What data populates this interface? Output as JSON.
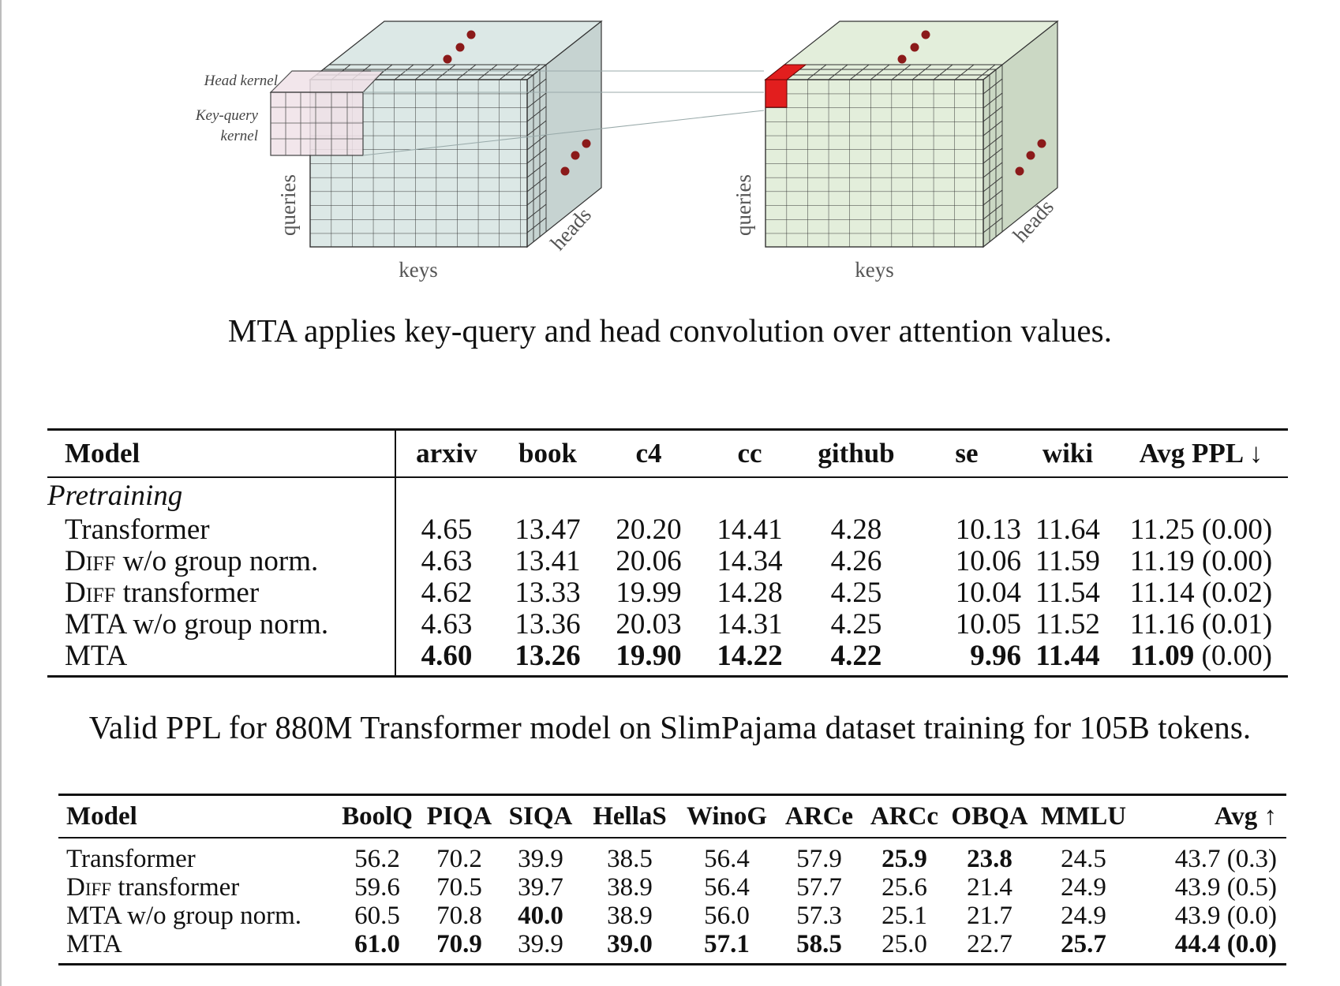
{
  "figure": {
    "labels": {
      "head_kernel": "Head kernel",
      "key_query_kernel_line1": "Key-query",
      "key_query_kernel_line2": "kernel",
      "queries_left": "queries",
      "keys_left": "keys",
      "heads_left": "heads",
      "queries_right": "queries",
      "keys_right": "keys",
      "heads_right": "heads"
    },
    "colors": {
      "left_cube": "#dce8e6",
      "right_cube": "#e3eedb",
      "kernel": "#f0e2e8",
      "highlight": "#e21e1e",
      "dots": "#8b1a1a"
    }
  },
  "caption1": "MTA applies key-query and head convolution over attention values.",
  "table1": {
    "headers": [
      "Model",
      "arxiv",
      "book",
      "c4",
      "cc",
      "github",
      "se",
      "wiki",
      "Avg PPL ↓"
    ],
    "section": "Pretraining",
    "rows": [
      {
        "model": "Transformer",
        "values": [
          "4.65",
          "13.47",
          "20.20",
          "14.41",
          "4.28",
          "10.13",
          "11.64"
        ],
        "avg": "11.25",
        "std": "(0.00)"
      },
      {
        "model_sc": "Diff",
        "model_rest": " w/o group norm.",
        "values": [
          "4.63",
          "13.41",
          "20.06",
          "14.34",
          "4.26",
          "10.06",
          "11.59"
        ],
        "avg": "11.19",
        "std": "(0.00)"
      },
      {
        "model_sc": "Diff",
        "model_rest": " transformer",
        "values": [
          "4.62",
          "13.33",
          "19.99",
          "14.28",
          "4.25",
          "10.04",
          "11.54"
        ],
        "avg": "11.14",
        "std": "(0.02)"
      },
      {
        "model": "MTA w/o group norm.",
        "values": [
          "4.63",
          "13.36",
          "20.03",
          "14.31",
          "4.25",
          "10.05",
          "11.52"
        ],
        "avg": "11.16",
        "std": "(0.01)"
      },
      {
        "model": "MTA",
        "values": [
          "4.60",
          "13.26",
          "19.90",
          "14.22",
          "4.22",
          "9.96",
          "11.44"
        ],
        "avg": "11.09",
        "std": "(0.00)"
      }
    ]
  },
  "caption2": "Valid PPL for 880M Transformer model on SlimPajama dataset training for 105B tokens.",
  "table2": {
    "headers": [
      "Model",
      "BoolQ",
      "PIQA",
      "SIQA",
      "HellaS",
      "WinoG",
      "ARCe",
      "ARCc",
      "OBQA",
      "MMLU",
      "Avg ↑"
    ],
    "rows": [
      {
        "model": "Transformer",
        "values": [
          "56.2",
          "70.2",
          "39.9",
          "38.5",
          "56.4",
          "57.9",
          "25.9",
          "23.8",
          "24.5"
        ],
        "avg": "43.7",
        "std": "(0.3)"
      },
      {
        "model_sc": "Diff",
        "model_rest": " transformer",
        "values": [
          "59.6",
          "70.5",
          "39.7",
          "38.9",
          "56.4",
          "57.7",
          "25.6",
          "21.4",
          "24.9"
        ],
        "avg": "43.9",
        "std": "(0.5)"
      },
      {
        "model": "MTA w/o group norm.",
        "values": [
          "60.5",
          "70.8",
          "40.0",
          "38.9",
          "56.0",
          "57.3",
          "25.1",
          "21.7",
          "24.9"
        ],
        "avg": "43.9",
        "std": "(0.0)"
      },
      {
        "model": "MTA",
        "values": [
          "61.0",
          "70.9",
          "39.9",
          "39.0",
          "57.1",
          "58.5",
          "25.0",
          "22.7",
          "25.7"
        ],
        "avg": "44.4",
        "std": "(0.0)"
      }
    ]
  }
}
